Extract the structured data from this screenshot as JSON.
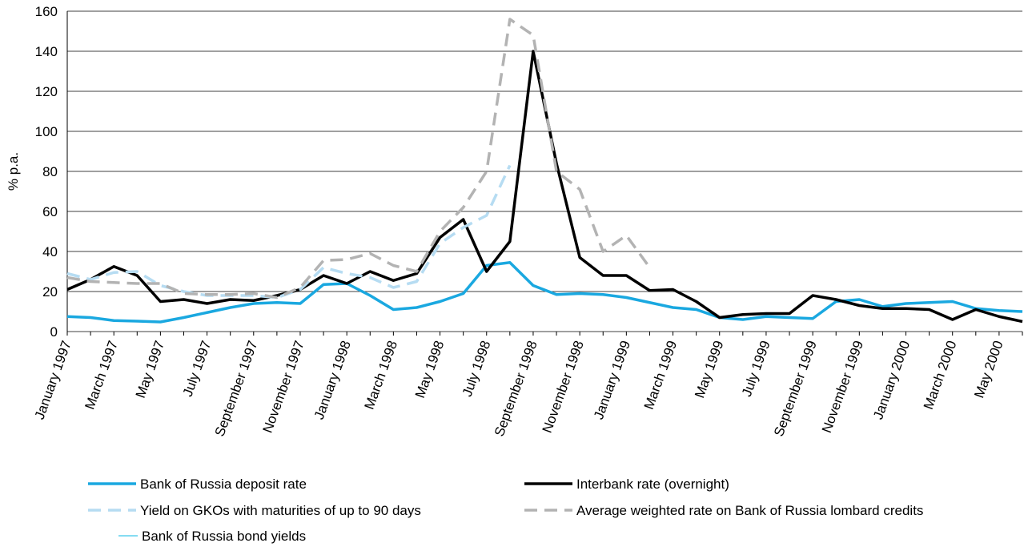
{
  "chart_data": {
    "type": "line",
    "y_label": "% p.a.",
    "categories": [
      "January 1997",
      null,
      "March 1997",
      null,
      "May 1997",
      null,
      "July 1997",
      null,
      "September 1997",
      null,
      "November 1997",
      null,
      "January 1998",
      null,
      "March 1998",
      null,
      "May 1998",
      null,
      "July 1998",
      null,
      "September 1998",
      null,
      "November 1998",
      null,
      "January 1999",
      null,
      "March 1999",
      null,
      "May 1999",
      null,
      "July 1999",
      null,
      "September 1999",
      null,
      "November 1999",
      null,
      "January 2000",
      null,
      "March 2000",
      null,
      "May 2000",
      null
    ],
    "series": [
      {
        "name": "Bank of Russia deposit rate",
        "color": "#1aa8e0",
        "dashed": false,
        "width": 3.5,
        "values": [
          7.5,
          7,
          5.5,
          5.2,
          4.8,
          7,
          9.5,
          12,
          14,
          14.5,
          14,
          23.5,
          24,
          18,
          11,
          12,
          15,
          19,
          33,
          34.5,
          23,
          18.5,
          19,
          18.5,
          17,
          14.5,
          12,
          11,
          7,
          6,
          7.5,
          7,
          6.5,
          15,
          16,
          12.5,
          14,
          14.5,
          15,
          11.5,
          10.5,
          10
        ]
      },
      {
        "name": "Interbank rate (overnight)",
        "color": "#000000",
        "dashed": false,
        "width": 3.5,
        "values": [
          21,
          26,
          32.5,
          28,
          15,
          16,
          14,
          16,
          15.5,
          18,
          21,
          28,
          24,
          30,
          25.5,
          29,
          47,
          56,
          30,
          45,
          140,
          84,
          37,
          28,
          28,
          20.5,
          21,
          15,
          7,
          8.5,
          9,
          9,
          18,
          16,
          13,
          11.5,
          11.5,
          11,
          6,
          11,
          7.5,
          5
        ]
      },
      {
        "name": "Yield on GKOs with maturities of up to 90 days",
        "color": "#b6dcf2",
        "dashed": true,
        "width": 3.5,
        "values": [
          29,
          26,
          29.5,
          30,
          23,
          20,
          18,
          18,
          18,
          17,
          21,
          32,
          29,
          27,
          22,
          25,
          44,
          52,
          58,
          83,
          null,
          null,
          null,
          null,
          null,
          null,
          null,
          null,
          null,
          null,
          null,
          null,
          null,
          null,
          null,
          null,
          null,
          null,
          null,
          null,
          null,
          null
        ]
      },
      {
        "name": "Average weighted rate on Bank of Russia lombard credits",
        "color": "#b3b3b3",
        "dashed": true,
        "width": 3.5,
        "values": [
          27,
          25,
          24.5,
          24,
          24,
          19,
          18.5,
          18.5,
          19,
          17,
          22,
          35.5,
          36,
          39,
          33,
          30,
          50,
          62,
          80,
          156,
          148,
          80,
          71,
          40,
          48,
          32,
          null,
          null,
          null,
          null,
          null,
          null,
          null,
          null,
          null,
          null,
          null,
          null,
          null,
          null,
          null,
          null
        ]
      },
      {
        "name": "Bank of Russia bond yields",
        "color": "#5fd0ee",
        "dashed": false,
        "width": 1.5,
        "values": [
          null,
          null,
          null,
          null,
          null,
          null,
          null,
          null,
          null,
          null,
          null,
          null,
          null,
          null,
          null,
          null,
          null,
          null,
          null,
          null,
          null,
          null,
          null,
          null,
          null,
          null,
          null,
          null,
          null,
          null,
          null,
          null,
          null,
          null,
          null,
          null,
          null,
          null,
          null,
          null,
          null,
          null
        ]
      }
    ],
    "ylim": [
      0,
      160
    ],
    "yticks": [
      0,
      20,
      40,
      60,
      80,
      100,
      120,
      140,
      160
    ],
    "grid": true
  }
}
